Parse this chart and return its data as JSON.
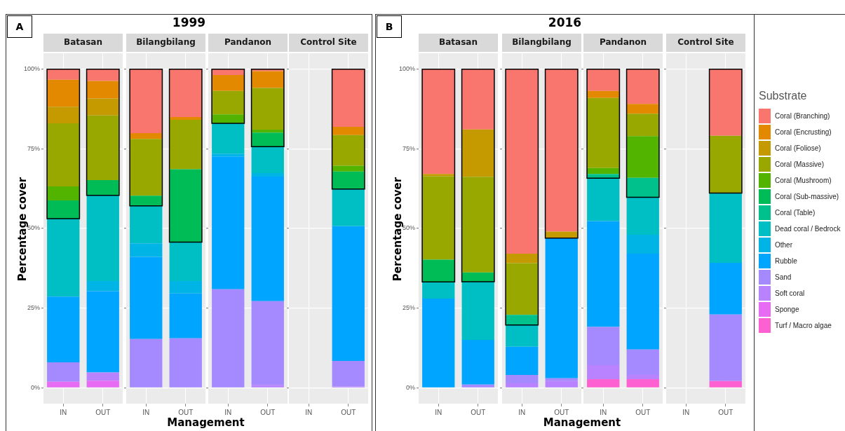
{
  "chart_data": [
    {
      "type": "bar",
      "title": "Batasan",
      "annotations": [
        "A",
        "1999"
      ],
      "xlabel": "Management",
      "ylabel": "Percentage cover",
      "categories": [
        "IN",
        "OUT"
      ],
      "stacked": true,
      "grid": true,
      "ylim": [
        -5,
        105
      ],
      "yticks": [
        {
          "value": 0,
          "label": "0%"
        },
        {
          "value": 25,
          "label": "25%"
        },
        {
          "value": 50,
          "label": "50%"
        },
        {
          "value": 75,
          "label": "75%"
        },
        {
          "value": 100,
          "label": "100%"
        }
      ],
      "series": [
        {
          "color": "#fd61d1",
          "values": [
            0,
            0
          ]
        },
        {
          "color": "#e76bf3",
          "values": [
            1.9,
            2.2
          ]
        },
        {
          "color": "#b983ff",
          "values": [
            0,
            2.6
          ]
        },
        {
          "color": "#a58aff",
          "values": [
            6.1,
            0
          ]
        },
        {
          "color": "#00a5ff",
          "values": [
            20.6,
            25.5
          ]
        },
        {
          "color": "#00b4e6",
          "values": [
            0,
            3.2
          ]
        },
        {
          "color": "#00bfc4",
          "values": [
            24.5,
            26.9
          ]
        },
        {
          "color": "#00c08b",
          "values": [
            0,
            0
          ]
        },
        {
          "color": "#00bc56",
          "values": [
            5.7,
            4.8
          ]
        },
        {
          "color": "#53b400",
          "values": [
            4.4,
            0
          ]
        },
        {
          "color": "#99a800",
          "values": [
            19.8,
            20.3
          ]
        },
        {
          "color": "#c49a00",
          "values": [
            5.2,
            5.3
          ]
        },
        {
          "color": "#e38900",
          "values": [
            8.5,
            5.5
          ]
        },
        {
          "color": "#f8766d",
          "values": [
            3.3,
            3.7
          ]
        }
      ]
    },
    {
      "type": "bar",
      "title": "Bilangbilang",
      "categories": [
        "IN",
        "OUT"
      ],
      "stacked": true,
      "grid": true,
      "tick_labels": "x",
      "ylim": [
        -5,
        105
      ],
      "yticks": [
        {
          "value": 0,
          "label": null
        },
        {
          "value": 25,
          "label": null
        },
        {
          "value": 50,
          "label": null
        },
        {
          "value": 75,
          "label": null
        },
        {
          "value": 100,
          "label": null
        }
      ],
      "series": [
        {
          "color": "#fd61d1",
          "values": [
            0,
            0
          ]
        },
        {
          "color": "#e76bf3",
          "values": [
            0,
            0
          ]
        },
        {
          "color": "#b983ff",
          "values": [
            0,
            0
          ]
        },
        {
          "color": "#a58aff",
          "values": [
            15.3,
            15.5
          ]
        },
        {
          "color": "#00a5ff",
          "values": [
            25.8,
            14.1
          ]
        },
        {
          "color": "#00b4e6",
          "values": [
            4.2,
            3.9
          ]
        },
        {
          "color": "#00bfc4",
          "values": [
            11.8,
            12.2
          ]
        },
        {
          "color": "#00c08b",
          "values": [
            0,
            0
          ]
        },
        {
          "color": "#00bc56",
          "values": [
            3.2,
            22.9
          ]
        },
        {
          "color": "#53b400",
          "values": [
            0,
            0
          ]
        },
        {
          "color": "#99a800",
          "values": [
            17.8,
            15.5
          ]
        },
        {
          "color": "#c49a00",
          "values": [
            0,
            0
          ]
        },
        {
          "color": "#e38900",
          "values": [
            1.8,
            0.9
          ]
        },
        {
          "color": "#f8766d",
          "values": [
            20.1,
            15.0
          ]
        }
      ]
    },
    {
      "type": "bar",
      "title": "Pandanon",
      "categories": [
        "IN",
        "OUT"
      ],
      "stacked": true,
      "grid": true,
      "tick_labels": "x",
      "ylim": [
        -5,
        105
      ],
      "yticks": [
        {
          "value": 0,
          "label": null
        },
        {
          "value": 25,
          "label": null
        },
        {
          "value": 50,
          "label": null
        },
        {
          "value": 75,
          "label": null
        },
        {
          "value": 100,
          "label": null
        }
      ],
      "series": [
        {
          "color": "#fd61d1",
          "values": [
            0,
            0
          ]
        },
        {
          "color": "#e76bf3",
          "values": [
            0,
            0
          ]
        },
        {
          "color": "#b983ff",
          "values": [
            0,
            0.9
          ]
        },
        {
          "color": "#a58aff",
          "values": [
            30.9,
            26.3
          ]
        },
        {
          "color": "#00a5ff",
          "values": [
            41.7,
            39.1
          ]
        },
        {
          "color": "#00b4e6",
          "values": [
            0.9,
            1.1
          ]
        },
        {
          "color": "#00bfc4",
          "values": [
            9.5,
            8.3
          ]
        },
        {
          "color": "#00c08b",
          "values": [
            0,
            0
          ]
        },
        {
          "color": "#00bc56",
          "values": [
            0,
            4.4
          ]
        },
        {
          "color": "#53b400",
          "values": [
            2.8,
            0.9
          ]
        },
        {
          "color": "#99a800",
          "values": [
            7.4,
            13.1
          ]
        },
        {
          "color": "#c49a00",
          "values": [
            0,
            0
          ]
        },
        {
          "color": "#e38900",
          "values": [
            5.0,
            5.3
          ]
        },
        {
          "color": "#f8766d",
          "values": [
            1.8,
            0.6
          ]
        }
      ]
    },
    {
      "type": "bar",
      "title": "Control Site",
      "categories": [
        "IN",
        "OUT"
      ],
      "stacked": true,
      "grid": true,
      "tick_labels": "x",
      "ylim": [
        -5,
        105
      ],
      "yticks": [
        {
          "value": 0,
          "label": null
        },
        {
          "value": 25,
          "label": null
        },
        {
          "value": 50,
          "label": null
        },
        {
          "value": 75,
          "label": null
        },
        {
          "value": 100,
          "label": null
        }
      ],
      "series": [
        {
          "color": "#fd61d1",
          "values": [
            null,
            0
          ]
        },
        {
          "color": "#e76bf3",
          "values": [
            null,
            0
          ]
        },
        {
          "color": "#b983ff",
          "values": [
            null,
            0.4
          ]
        },
        {
          "color": "#a58aff",
          "values": [
            null,
            8.0
          ]
        },
        {
          "color": "#00a5ff",
          "values": [
            null,
            42.3
          ]
        },
        {
          "color": "#00b4e6",
          "values": [
            null,
            0
          ]
        },
        {
          "color": "#00bfc4",
          "values": [
            null,
            11.7
          ]
        },
        {
          "color": "#00c08b",
          "values": [
            null,
            0
          ]
        },
        {
          "color": "#00bc56",
          "values": [
            null,
            5.5
          ]
        },
        {
          "color": "#53b400",
          "values": [
            null,
            1.8
          ]
        },
        {
          "color": "#99a800",
          "values": [
            null,
            9.6
          ]
        },
        {
          "color": "#c49a00",
          "values": [
            null,
            0
          ]
        },
        {
          "color": "#e38900",
          "values": [
            null,
            2.6
          ]
        },
        {
          "color": "#f8766d",
          "values": [
            null,
            18.1
          ]
        }
      ]
    },
    {
      "type": "bar",
      "title": "Batasan",
      "annotations": [
        "B",
        "2016"
      ],
      "xlabel": "Management",
      "ylabel": "Percentage cover",
      "categories": [
        "IN",
        "OUT"
      ],
      "stacked": true,
      "grid": true,
      "ylim": [
        -5,
        105
      ],
      "yticks": [
        {
          "value": 0,
          "label": "0%"
        },
        {
          "value": 25,
          "label": "25%"
        },
        {
          "value": 50,
          "label": "50%"
        },
        {
          "value": 75,
          "label": "75%"
        },
        {
          "value": 100,
          "label": "100%"
        }
      ],
      "series": [
        {
          "color": "#fd61d1",
          "values": [
            0,
            0
          ]
        },
        {
          "color": "#e76bf3",
          "values": [
            0,
            0
          ]
        },
        {
          "color": "#b983ff",
          "values": [
            0,
            0
          ]
        },
        {
          "color": "#a58aff",
          "values": [
            0,
            1.0
          ]
        },
        {
          "color": "#00a5ff",
          "values": [
            28.0,
            14.0
          ]
        },
        {
          "color": "#00b4e6",
          "values": [
            0,
            0
          ]
        },
        {
          "color": "#00bfc4",
          "values": [
            5.2,
            18.3
          ]
        },
        {
          "color": "#00c08b",
          "values": [
            0,
            0
          ]
        },
        {
          "color": "#00bc56",
          "values": [
            7.0,
            2.9
          ]
        },
        {
          "color": "#53b400",
          "values": [
            0,
            0
          ]
        },
        {
          "color": "#99a800",
          "values": [
            26.2,
            30.0
          ]
        },
        {
          "color": "#c49a00",
          "values": [
            0.7,
            14.9
          ]
        },
        {
          "color": "#e38900",
          "values": [
            0,
            0
          ]
        },
        {
          "color": "#f8766d",
          "values": [
            32.9,
            18.9
          ]
        }
      ]
    },
    {
      "type": "bar",
      "title": "Bilangbilang",
      "categories": [
        "IN",
        "OUT"
      ],
      "stacked": true,
      "grid": true,
      "tick_labels": "x",
      "ylim": [
        -5,
        105
      ],
      "yticks": [
        {
          "value": 0,
          "label": null
        },
        {
          "value": 25,
          "label": null
        },
        {
          "value": 50,
          "label": null
        },
        {
          "value": 75,
          "label": null
        },
        {
          "value": 100,
          "label": null
        }
      ],
      "series": [
        {
          "color": "#fd61d1",
          "values": [
            0,
            0
          ]
        },
        {
          "color": "#e76bf3",
          "values": [
            0,
            0
          ]
        },
        {
          "color": "#b983ff",
          "values": [
            1.4,
            2.1
          ]
        },
        {
          "color": "#a58aff",
          "values": [
            2.6,
            0.9
          ]
        },
        {
          "color": "#00a5ff",
          "values": [
            8.9,
            44.0
          ]
        },
        {
          "color": "#00b4e6",
          "values": [
            0,
            0
          ]
        },
        {
          "color": "#00bfc4",
          "values": [
            6.8,
            0
          ]
        },
        {
          "color": "#00c08b",
          "values": [
            3.2,
            0
          ]
        },
        {
          "color": "#00bc56",
          "values": [
            0,
            0
          ]
        },
        {
          "color": "#53b400",
          "values": [
            0,
            0
          ]
        },
        {
          "color": "#99a800",
          "values": [
            16.2,
            0
          ]
        },
        {
          "color": "#c49a00",
          "values": [
            3.0,
            2.0
          ]
        },
        {
          "color": "#e38900",
          "values": [
            0,
            0
          ]
        },
        {
          "color": "#f8766d",
          "values": [
            57.9,
            51.0
          ]
        }
      ]
    },
    {
      "type": "bar",
      "title": "Pandanon",
      "categories": [
        "IN",
        "OUT"
      ],
      "stacked": true,
      "grid": true,
      "tick_labels": "x",
      "ylim": [
        -5,
        105
      ],
      "yticks": [
        {
          "value": 0,
          "label": null
        },
        {
          "value": 25,
          "label": null
        },
        {
          "value": 50,
          "label": null
        },
        {
          "value": 75,
          "label": null
        },
        {
          "value": 100,
          "label": null
        }
      ],
      "series": [
        {
          "color": "#fd61d1",
          "values": [
            2.7,
            2.7
          ]
        },
        {
          "color": "#e76bf3",
          "values": [
            0,
            0
          ]
        },
        {
          "color": "#b983ff",
          "values": [
            4.4,
            1.3
          ]
        },
        {
          "color": "#a58aff",
          "values": [
            12.0,
            8.0
          ]
        },
        {
          "color": "#00a5ff",
          "values": [
            33.2,
            30.1
          ]
        },
        {
          "color": "#00b4e6",
          "values": [
            0,
            5.9
          ]
        },
        {
          "color": "#00bfc4",
          "values": [
            13.5,
            11.8
          ]
        },
        {
          "color": "#00c08b",
          "values": [
            1.3,
            6.1
          ]
        },
        {
          "color": "#00bc56",
          "values": [
            0,
            0
          ]
        },
        {
          "color": "#53b400",
          "values": [
            1.9,
            13.1
          ]
        },
        {
          "color": "#99a800",
          "values": [
            22.0,
            7.0
          ]
        },
        {
          "color": "#c49a00",
          "values": [
            0,
            0
          ]
        },
        {
          "color": "#e38900",
          "values": [
            2.2,
            3.1
          ]
        },
        {
          "color": "#f8766d",
          "values": [
            6.8,
            10.9
          ]
        }
      ]
    },
    {
      "type": "bar",
      "title": "Control Site",
      "categories": [
        "IN",
        "OUT"
      ],
      "stacked": true,
      "grid": true,
      "tick_labels": "x",
      "legend": "right",
      "legend_title": "Substrate",
      "ylim": [
        -5,
        105
      ],
      "yticks": [
        {
          "value": 0,
          "label": null
        },
        {
          "value": 25,
          "label": null
        },
        {
          "value": 50,
          "label": null
        },
        {
          "value": 75,
          "label": null
        },
        {
          "value": 100,
          "label": null
        }
      ],
      "series": [
        {
          "name": "Turf / Macro algae",
          "color": "#fd61d1",
          "values": [
            null,
            2.1
          ]
        },
        {
          "name": "Sponge",
          "color": "#e76bf3",
          "values": [
            null,
            0
          ]
        },
        {
          "name": "Soft coral",
          "color": "#b983ff",
          "values": [
            null,
            0
          ]
        },
        {
          "name": "Sand",
          "color": "#a58aff",
          "values": [
            null,
            20.9
          ]
        },
        {
          "name": "Rubble",
          "color": "#00a5ff",
          "values": [
            null,
            16.2
          ]
        },
        {
          "name": "Other",
          "color": "#00b4e6",
          "values": [
            null,
            0
          ]
        },
        {
          "name": "Dead coral / Bedrock",
          "color": "#00bfc4",
          "values": [
            null,
            21.9
          ]
        },
        {
          "name": "Coral (Table)",
          "color": "#00c08b",
          "values": [
            null,
            0
          ]
        },
        {
          "name": "Coral (Sub-massive)",
          "color": "#00bc56",
          "values": [
            null,
            0
          ]
        },
        {
          "name": "Coral (Mushroom)",
          "color": "#53b400",
          "values": [
            null,
            0
          ]
        },
        {
          "name": "Coral (Massive)",
          "color": "#99a800",
          "values": [
            null,
            18.0
          ]
        },
        {
          "name": "Coral (Foliose)",
          "color": "#c49a00",
          "values": [
            null,
            0
          ]
        },
        {
          "name": "Coral (Encrusting)",
          "color": "#e38900",
          "values": [
            null,
            0
          ]
        },
        {
          "name": "Coral (Branching)",
          "color": "#f8766d",
          "values": [
            null,
            20.9
          ]
        }
      ]
    }
  ]
}
